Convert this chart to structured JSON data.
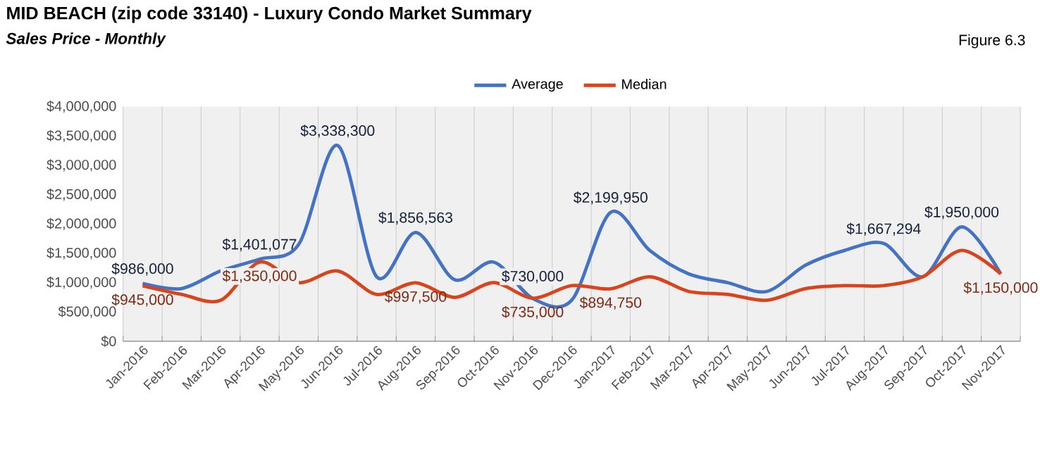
{
  "chart_data": {
    "type": "line",
    "title": "MID BEACH (zip code 33140) - Luxury Condo Market Summary",
    "subtitle": "Sales Price - Monthly",
    "annotations": [
      "Figure 6.3"
    ],
    "categories": [
      "Jan-2016",
      "Feb-2016",
      "Mar-2016",
      "Apr-2016",
      "May-2016",
      "Jun-2016",
      "Jul-2016",
      "Aug-2016",
      "Sep-2016",
      "Oct-2016",
      "Nov-2016",
      "Dec-2016",
      "Jan-2017",
      "Feb-2017",
      "Mar-2017",
      "Apr-2017",
      "May-2017",
      "Jun-2017",
      "Jul-2017",
      "Aug-2017",
      "Sep-2017",
      "Oct-2017",
      "Nov-2017"
    ],
    "series": [
      {
        "name": "Average",
        "color": "#4472c4",
        "values": [
          986000,
          900000,
          1200000,
          1401077,
          1650000,
          3338300,
          1100000,
          1856563,
          1050000,
          1350000,
          730000,
          700000,
          2199950,
          1550000,
          1150000,
          1000000,
          850000,
          1300000,
          1550000,
          1667294,
          1100000,
          1950000,
          1150000
        ],
        "value_labels": [
          "$986,000",
          null,
          null,
          "$1,401,077",
          null,
          "$3,338,300",
          null,
          "$1,856,563",
          null,
          null,
          "$730,000",
          null,
          "$2,199,950",
          null,
          null,
          null,
          null,
          null,
          null,
          "$1,667,294",
          null,
          "$1,950,000",
          null
        ]
      },
      {
        "name": "Median",
        "color": "#d9441c",
        "values": [
          945000,
          800000,
          700000,
          1350000,
          1000000,
          1200000,
          800000,
          997500,
          750000,
          1000000,
          735000,
          950000,
          894750,
          1100000,
          850000,
          800000,
          700000,
          900000,
          950000,
          950000,
          1100000,
          1550000,
          1150000
        ],
        "value_labels": [
          "$945,000",
          null,
          null,
          "$1,350,000",
          null,
          null,
          null,
          "$997,500",
          null,
          null,
          "$735,000",
          null,
          "$894,750",
          null,
          null,
          null,
          null,
          null,
          null,
          null,
          null,
          null,
          "$1,150,000"
        ]
      }
    ],
    "ylim": [
      0,
      4000000
    ],
    "yticks": [
      {
        "value": 0,
        "label": "$0"
      },
      {
        "value": 500000,
        "label": "$500,000"
      },
      {
        "value": 1000000,
        "label": "$1,000,000"
      },
      {
        "value": 1500000,
        "label": "$1,500,000"
      },
      {
        "value": 2000000,
        "label": "$2,000,000"
      },
      {
        "value": 2500000,
        "label": "$2,500,000"
      },
      {
        "value": 3000000,
        "label": "$3,000,000"
      },
      {
        "value": 3500000,
        "label": "$3,500,000"
      },
      {
        "value": 4000000,
        "label": "$4,000,000"
      }
    ],
    "grid": "x",
    "legend": "top",
    "marker": "none",
    "line_style": "solid"
  }
}
